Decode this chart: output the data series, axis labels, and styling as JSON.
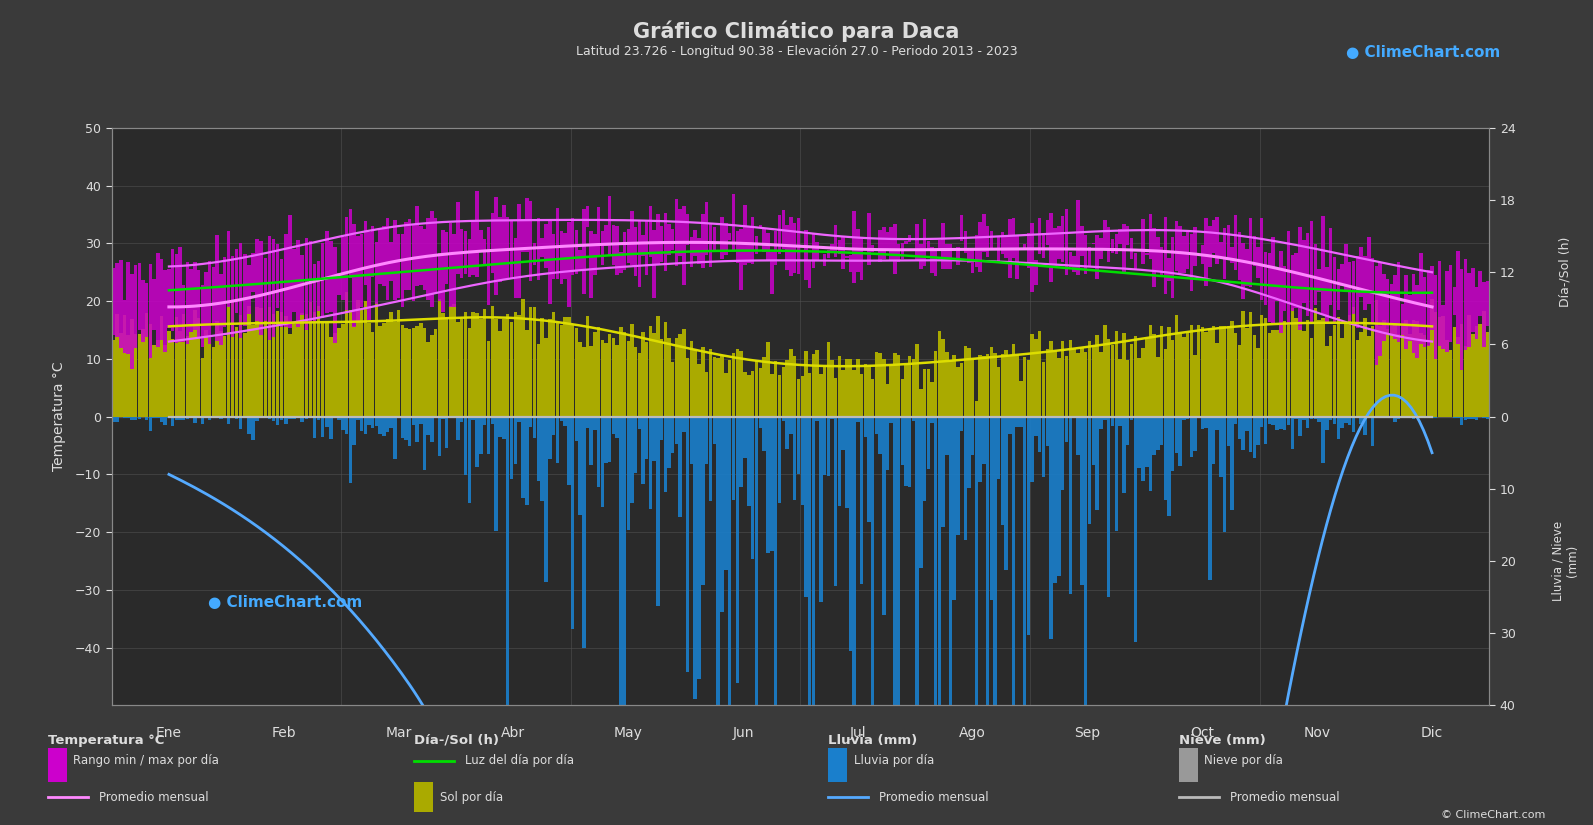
{
  "title": "Gráfico Climático para Daca",
  "subtitle": "Latitud 23.726 - Longitud 90.38 - Elevación 27.0 - Periodo 2013 - 2023",
  "months": [
    "Ene",
    "Feb",
    "Mar",
    "Abr",
    "May",
    "Jun",
    "Jul",
    "Ago",
    "Sep",
    "Oct",
    "Nov",
    "Dic"
  ],
  "bg_color": "#3a3a3a",
  "plot_bg_color": "#2a2a2a",
  "temp_min_monthly": [
    13,
    16,
    20,
    24,
    26,
    27,
    27,
    27,
    26,
    24,
    18,
    13
  ],
  "temp_max_monthly": [
    26,
    29,
    33,
    34,
    34,
    33,
    31,
    31,
    32,
    32,
    29,
    25
  ],
  "temp_avg_monthly": [
    19,
    22,
    27,
    29,
    30,
    30,
    29,
    29,
    29,
    28,
    24,
    19
  ],
  "daylight_monthly": [
    10.5,
    11.2,
    12.0,
    12.8,
    13.5,
    13.8,
    13.6,
    13.0,
    12.2,
    11.4,
    10.6,
    10.3
  ],
  "sunshine_monthly": [
    7.5,
    7.8,
    8.0,
    8.2,
    6.8,
    4.8,
    4.2,
    4.8,
    5.8,
    7.2,
    7.8,
    7.5
  ],
  "rainfall_monthly_mm": [
    8,
    18,
    35,
    80,
    200,
    310,
    360,
    300,
    210,
    110,
    20,
    5
  ],
  "rainfall_daily_max_scale": [
    30,
    50,
    80,
    150,
    300,
    420,
    480,
    420,
    300,
    180,
    60,
    30
  ],
  "snow_monthly_mm": [
    0,
    0,
    0,
    0,
    0,
    0,
    0,
    0,
    0,
    0,
    0,
    0
  ],
  "n_days": [
    31,
    28,
    31,
    30,
    31,
    30,
    31,
    31,
    30,
    31,
    30,
    31
  ],
  "temp_ylim": [
    -50,
    50
  ],
  "sun_max": 24,
  "rain_max": 40,
  "colors": {
    "temp_range_bar": "#cc00cc",
    "temp_avg_line": "#ff88ff",
    "temp_min_line": "#ee66ff",
    "temp_max_line": "#ee66ff",
    "daylight_line": "#00dd00",
    "sunshine_bar": "#aaaa00",
    "sunshine_line": "#dddd00",
    "rainfall_bar": "#1a7fcc",
    "rainfall_line": "#55aaff",
    "snow_bar": "#999999",
    "snow_line": "#bbbbbb",
    "grid": "#555555",
    "text": "#dddddd",
    "axis_spine": "#888888"
  },
  "right_axis_sun_ticks_h": [
    0,
    6,
    12,
    18,
    24
  ],
  "right_axis_rain_ticks_mm": [
    0,
    10,
    20,
    30,
    40
  ],
  "left_axis_ticks": [
    -40,
    -30,
    -20,
    -10,
    0,
    10,
    20,
    30,
    40,
    50
  ]
}
